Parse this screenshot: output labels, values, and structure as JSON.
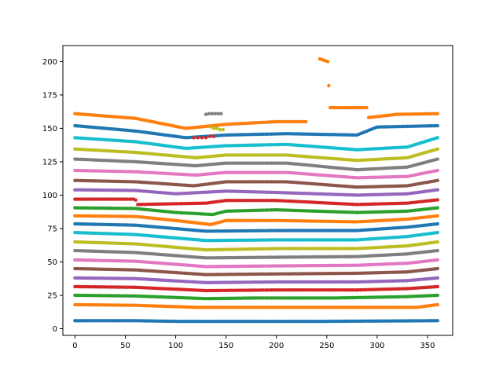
{
  "chart_data": {
    "type": "scatter",
    "title": "",
    "xlabel": "",
    "ylabel": "",
    "xlim": [
      -12,
      375
    ],
    "ylim": [
      -5,
      212
    ],
    "xticks": [
      0,
      50,
      100,
      150,
      200,
      250,
      300,
      350
    ],
    "yticks": [
      0,
      25,
      50,
      75,
      100,
      125,
      150,
      175,
      200
    ],
    "x_range": [
      0,
      360
    ],
    "point_count_per_series": 180,
    "grid": false,
    "legend": "none",
    "series": [
      {
        "color": "#1f77b4",
        "knots": [
          [
            0,
            6
          ],
          [
            60,
            6
          ],
          [
            100,
            5.5
          ],
          [
            250,
            5.5
          ],
          [
            360,
            6
          ]
        ]
      },
      {
        "color": "#ff7f0e",
        "knots": [
          [
            0,
            18
          ],
          [
            60,
            17.5
          ],
          [
            120,
            16
          ],
          [
            250,
            16
          ],
          [
            340,
            16
          ],
          [
            360,
            18
          ]
        ]
      },
      {
        "color": "#2ca02c",
        "knots": [
          [
            0,
            25
          ],
          [
            60,
            24.5
          ],
          [
            130,
            22.5
          ],
          [
            180,
            23
          ],
          [
            260,
            23
          ],
          [
            330,
            24
          ],
          [
            360,
            25
          ]
        ]
      },
      {
        "color": "#d62728",
        "knots": [
          [
            0,
            31.5
          ],
          [
            60,
            31
          ],
          [
            130,
            28.5
          ],
          [
            200,
            29
          ],
          [
            280,
            29
          ],
          [
            330,
            30
          ],
          [
            360,
            31.5
          ]
        ]
      },
      {
        "color": "#9467bd",
        "knots": [
          [
            0,
            38
          ],
          [
            60,
            37.5
          ],
          [
            130,
            34.5
          ],
          [
            200,
            35
          ],
          [
            280,
            35
          ],
          [
            330,
            36
          ],
          [
            360,
            38
          ]
        ]
      },
      {
        "color": "#8c564b",
        "knots": [
          [
            0,
            45
          ],
          [
            60,
            44
          ],
          [
            130,
            40.5
          ],
          [
            200,
            41
          ],
          [
            280,
            41.5
          ],
          [
            330,
            42.5
          ],
          [
            360,
            45
          ]
        ]
      },
      {
        "color": "#e377c2",
        "knots": [
          [
            0,
            51.5
          ],
          [
            60,
            50.5
          ],
          [
            130,
            46.5
          ],
          [
            200,
            47
          ],
          [
            280,
            47.5
          ],
          [
            330,
            49
          ],
          [
            360,
            51.5
          ]
        ]
      },
      {
        "color": "#7f7f7f",
        "knots": [
          [
            0,
            58.5
          ],
          [
            60,
            57
          ],
          [
            130,
            53
          ],
          [
            200,
            53.5
          ],
          [
            280,
            54
          ],
          [
            330,
            56
          ],
          [
            360,
            58.5
          ]
        ]
      },
      {
        "color": "#bcbd22",
        "knots": [
          [
            0,
            65
          ],
          [
            60,
            63.5
          ],
          [
            130,
            59
          ],
          [
            200,
            60
          ],
          [
            280,
            60
          ],
          [
            330,
            62
          ],
          [
            360,
            65
          ]
        ]
      },
      {
        "color": "#17becf",
        "knots": [
          [
            0,
            72
          ],
          [
            60,
            70.5
          ],
          [
            130,
            66
          ],
          [
            200,
            66.5
          ],
          [
            280,
            66.5
          ],
          [
            330,
            69
          ],
          [
            360,
            72
          ]
        ]
      },
      {
        "color": "#1f77b4",
        "knots": [
          [
            0,
            78.5
          ],
          [
            60,
            77.5
          ],
          [
            130,
            73
          ],
          [
            200,
            73.5
          ],
          [
            280,
            73.5
          ],
          [
            330,
            76
          ],
          [
            360,
            78.5
          ]
        ]
      },
      {
        "color": "#ff7f0e",
        "knots": [
          [
            0,
            84.5
          ],
          [
            60,
            84
          ],
          [
            100,
            81
          ],
          [
            135,
            78
          ],
          [
            150,
            81
          ],
          [
            200,
            81
          ],
          [
            280,
            80
          ],
          [
            330,
            82
          ],
          [
            360,
            84.5
          ]
        ]
      },
      {
        "color": "#2ca02c",
        "knots": [
          [
            0,
            90.5
          ],
          [
            60,
            90
          ],
          [
            100,
            87
          ],
          [
            137,
            85.5
          ],
          [
            150,
            88
          ],
          [
            200,
            89
          ],
          [
            280,
            87
          ],
          [
            330,
            88
          ],
          [
            360,
            90.5
          ]
        ]
      },
      {
        "color": "#d62728",
        "knots": [
          [
            0,
            97
          ],
          [
            60,
            97
          ],
          [
            62,
            93
          ],
          [
            130,
            94
          ],
          [
            150,
            96
          ],
          [
            200,
            96
          ],
          [
            280,
            93
          ],
          [
            330,
            94
          ],
          [
            360,
            96.5
          ]
        ]
      },
      {
        "color": "#9467bd",
        "knots": [
          [
            0,
            104
          ],
          [
            60,
            103.5
          ],
          [
            100,
            101
          ],
          [
            150,
            103
          ],
          [
            200,
            102
          ],
          [
            280,
            100
          ],
          [
            330,
            101
          ],
          [
            360,
            104
          ]
        ]
      },
      {
        "color": "#8c564b",
        "knots": [
          [
            0,
            111
          ],
          [
            60,
            110
          ],
          [
            118,
            107
          ],
          [
            150,
            110
          ],
          [
            210,
            110
          ],
          [
            280,
            106
          ],
          [
            330,
            107
          ],
          [
            360,
            111
          ]
        ]
      },
      {
        "color": "#e377c2",
        "knots": [
          [
            0,
            118.5
          ],
          [
            60,
            117.5
          ],
          [
            120,
            115
          ],
          [
            150,
            117
          ],
          [
            210,
            117
          ],
          [
            280,
            113
          ],
          [
            330,
            114
          ],
          [
            360,
            118.5
          ]
        ]
      },
      {
        "color": "#7f7f7f",
        "knots": [
          [
            0,
            127
          ],
          [
            60,
            125
          ],
          [
            120,
            122
          ],
          [
            150,
            124
          ],
          [
            210,
            124
          ],
          [
            280,
            119
          ],
          [
            330,
            121
          ],
          [
            360,
            127
          ]
        ]
      },
      {
        "color": "#bcbd22",
        "knots": [
          [
            0,
            134.5
          ],
          [
            60,
            132
          ],
          [
            120,
            128
          ],
          [
            150,
            130
          ],
          [
            210,
            130
          ],
          [
            280,
            126
          ],
          [
            330,
            128
          ],
          [
            360,
            134.5
          ]
        ]
      },
      {
        "color": "#17becf",
        "knots": [
          [
            0,
            143
          ],
          [
            60,
            140
          ],
          [
            110,
            135
          ],
          [
            150,
            137
          ],
          [
            210,
            138
          ],
          [
            280,
            134
          ],
          [
            330,
            136
          ],
          [
            360,
            143
          ]
        ]
      },
      {
        "color": "#1f77b4",
        "knots": [
          [
            0,
            152
          ],
          [
            60,
            148
          ],
          [
            110,
            143
          ],
          [
            150,
            145
          ],
          [
            210,
            146
          ],
          [
            280,
            145
          ],
          [
            300,
            151
          ],
          [
            360,
            152
          ]
        ]
      },
      {
        "color": "#ff7f0e",
        "knots": [
          [
            0,
            161
          ],
          [
            60,
            157.5
          ],
          [
            110,
            150
          ],
          [
            150,
            153
          ],
          [
            200,
            155
          ],
          [
            230,
            155
          ]
        ]
      },
      {
        "color": "#ff7f0e",
        "knots": [
          [
            252,
            165.5
          ],
          [
            290,
            165.5
          ]
        ]
      },
      {
        "color": "#ff7f0e",
        "knots": [
          [
            290,
            158
          ],
          [
            320,
            160.5
          ],
          [
            360,
            161
          ]
        ]
      }
    ],
    "scattered_points": [
      {
        "color": "#ff7f0e",
        "points": [
          [
            243,
            202
          ],
          [
            245,
            201.5
          ],
          [
            247,
            201
          ],
          [
            249,
            200.5
          ],
          [
            251,
            200
          ],
          [
            252,
            182
          ]
        ]
      },
      {
        "color": "#7f7f7f",
        "points": [
          [
            130,
            160.5
          ],
          [
            133,
            161
          ],
          [
            136,
            161
          ],
          [
            139,
            161
          ],
          [
            142,
            161
          ],
          [
            145,
            161
          ]
        ]
      },
      {
        "color": "#bcbd22",
        "points": [
          [
            135,
            151
          ],
          [
            138,
            150
          ],
          [
            141,
            150
          ],
          [
            144,
            149
          ],
          [
            147,
            149
          ]
        ]
      },
      {
        "color": "#d62728",
        "points": [
          [
            118,
            143
          ],
          [
            122,
            143
          ],
          [
            126,
            143
          ],
          [
            130,
            143
          ],
          [
            134,
            144
          ],
          [
            138,
            144
          ]
        ]
      }
    ]
  }
}
